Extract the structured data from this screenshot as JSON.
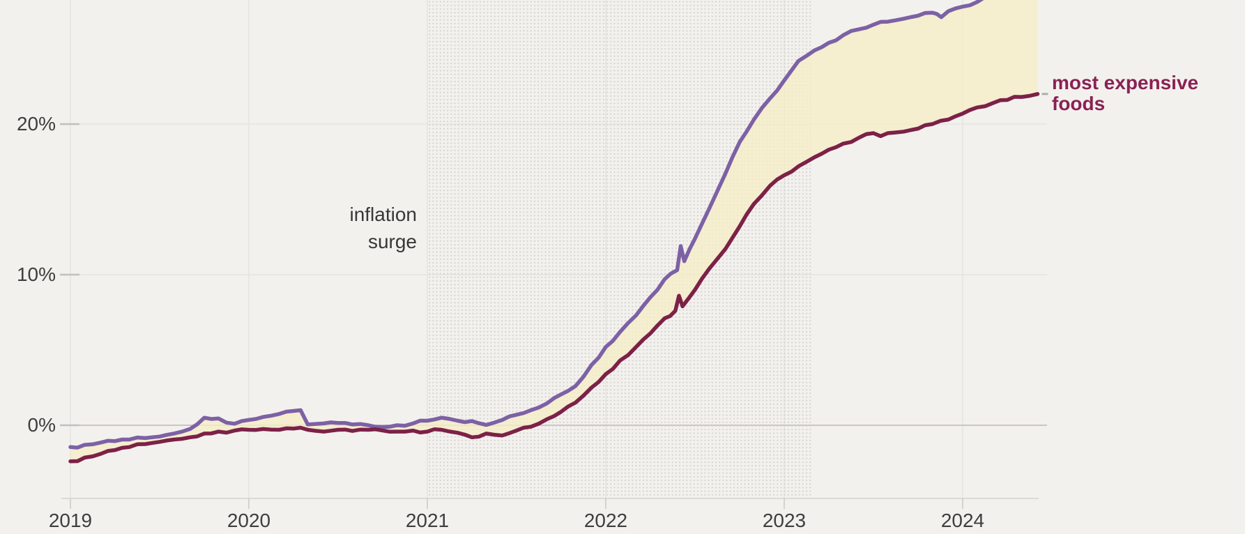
{
  "chart_data": {
    "type": "line",
    "title": "",
    "annotation": {
      "lines": [
        "inflation",
        "surge"
      ]
    },
    "x_axis": {
      "range": [
        2019.0,
        2024.42
      ],
      "ticks": [
        {
          "v": 2019,
          "label": "2019"
        },
        {
          "v": 2020,
          "label": "2020"
        },
        {
          "v": 2021,
          "label": "2021"
        },
        {
          "v": 2022,
          "label": "2022"
        },
        {
          "v": 2023,
          "label": "2023"
        },
        {
          "v": 2024,
          "label": "2024"
        }
      ]
    },
    "y_axis": {
      "unit": "percent",
      "range_shown": [
        -4.9,
        28.2
      ],
      "ticks": [
        {
          "v": 20,
          "label": "20%"
        },
        {
          "v": 10,
          "label": "10%"
        },
        {
          "v": 0,
          "label": "0%"
        }
      ]
    },
    "surge_band": {
      "from": 2021.0,
      "to": 2023.15,
      "label": "inflation surge"
    },
    "fill_between": {
      "color": "#f5eec7",
      "opacity": 0.8
    },
    "series": [
      {
        "name": "",
        "color": "#7d61a5",
        "points": [
          [
            2019.0,
            -1.45
          ],
          [
            2019.08,
            -1.3
          ],
          [
            2019.17,
            -1.15
          ],
          [
            2019.25,
            -1.05
          ],
          [
            2019.33,
            -0.95
          ],
          [
            2019.42,
            -0.85
          ],
          [
            2019.5,
            -0.75
          ],
          [
            2019.58,
            -0.55
          ],
          [
            2019.67,
            -0.25
          ],
          [
            2019.75,
            0.5
          ],
          [
            2019.83,
            0.45
          ],
          [
            2019.92,
            0.1
          ],
          [
            2020.0,
            0.35
          ],
          [
            2020.08,
            0.55
          ],
          [
            2020.17,
            0.75
          ],
          [
            2020.25,
            0.95
          ],
          [
            2020.29,
            1.0
          ],
          [
            2020.33,
            0.05
          ],
          [
            2020.42,
            0.12
          ],
          [
            2020.5,
            0.15
          ],
          [
            2020.58,
            0.05
          ],
          [
            2020.67,
            0.0
          ],
          [
            2020.75,
            -0.12
          ],
          [
            2020.83,
            0.0
          ],
          [
            2020.92,
            0.12
          ],
          [
            2021.0,
            0.3
          ],
          [
            2021.08,
            0.5
          ],
          [
            2021.17,
            0.3
          ],
          [
            2021.25,
            0.28
          ],
          [
            2021.33,
            0.02
          ],
          [
            2021.42,
            0.35
          ],
          [
            2021.5,
            0.7
          ],
          [
            2021.58,
            1.0
          ],
          [
            2021.67,
            1.45
          ],
          [
            2021.75,
            2.05
          ],
          [
            2021.83,
            2.6
          ],
          [
            2021.92,
            4.0
          ],
          [
            2022.0,
            5.2
          ],
          [
            2022.08,
            6.2
          ],
          [
            2022.17,
            7.3
          ],
          [
            2022.25,
            8.5
          ],
          [
            2022.33,
            9.7
          ],
          [
            2022.4,
            10.3
          ],
          [
            2022.42,
            11.9
          ],
          [
            2022.44,
            10.9
          ],
          [
            2022.5,
            12.4
          ],
          [
            2022.58,
            14.4
          ],
          [
            2022.67,
            16.7
          ],
          [
            2022.75,
            18.8
          ],
          [
            2022.83,
            20.3
          ],
          [
            2022.92,
            21.7
          ],
          [
            2023.0,
            22.9
          ],
          [
            2023.08,
            24.2
          ],
          [
            2023.17,
            24.9
          ],
          [
            2023.25,
            25.4
          ],
          [
            2023.33,
            25.9
          ],
          [
            2023.42,
            26.3
          ],
          [
            2023.5,
            26.6
          ],
          [
            2023.58,
            26.8
          ],
          [
            2023.67,
            27.0
          ],
          [
            2023.75,
            27.2
          ],
          [
            2023.83,
            27.4
          ],
          [
            2023.88,
            27.1
          ],
          [
            2023.92,
            27.5
          ],
          [
            2024.0,
            27.8
          ],
          [
            2024.08,
            28.1
          ],
          [
            2024.17,
            28.6
          ],
          [
            2024.25,
            29.1
          ],
          [
            2024.33,
            29.4
          ],
          [
            2024.42,
            29.6
          ]
        ]
      },
      {
        "name": "most expensive foods",
        "label_lines": [
          "most expensive",
          "foods"
        ],
        "color": "#7c2147",
        "label_color": "#8a2153",
        "points": [
          [
            2019.0,
            -2.4
          ],
          [
            2019.08,
            -2.15
          ],
          [
            2019.17,
            -1.9
          ],
          [
            2019.25,
            -1.65
          ],
          [
            2019.33,
            -1.45
          ],
          [
            2019.42,
            -1.25
          ],
          [
            2019.5,
            -1.1
          ],
          [
            2019.58,
            -0.95
          ],
          [
            2019.67,
            -0.8
          ],
          [
            2019.75,
            -0.55
          ],
          [
            2019.83,
            -0.42
          ],
          [
            2019.92,
            -0.35
          ],
          [
            2020.0,
            -0.3
          ],
          [
            2020.08,
            -0.25
          ],
          [
            2020.17,
            -0.3
          ],
          [
            2020.25,
            -0.22
          ],
          [
            2020.33,
            -0.3
          ],
          [
            2020.42,
            -0.42
          ],
          [
            2020.5,
            -0.3
          ],
          [
            2020.58,
            -0.38
          ],
          [
            2020.67,
            -0.3
          ],
          [
            2020.75,
            -0.35
          ],
          [
            2020.83,
            -0.42
          ],
          [
            2020.92,
            -0.35
          ],
          [
            2021.0,
            -0.42
          ],
          [
            2021.08,
            -0.3
          ],
          [
            2021.17,
            -0.5
          ],
          [
            2021.25,
            -0.8
          ],
          [
            2021.33,
            -0.55
          ],
          [
            2021.42,
            -0.68
          ],
          [
            2021.5,
            -0.35
          ],
          [
            2021.58,
            -0.1
          ],
          [
            2021.67,
            0.4
          ],
          [
            2021.75,
            0.9
          ],
          [
            2021.83,
            1.5
          ],
          [
            2021.92,
            2.5
          ],
          [
            2022.0,
            3.4
          ],
          [
            2022.08,
            4.3
          ],
          [
            2022.17,
            5.2
          ],
          [
            2022.25,
            6.1
          ],
          [
            2022.33,
            7.1
          ],
          [
            2022.39,
            7.6
          ],
          [
            2022.41,
            8.6
          ],
          [
            2022.43,
            7.9
          ],
          [
            2022.5,
            9.0
          ],
          [
            2022.58,
            10.4
          ],
          [
            2022.67,
            11.7
          ],
          [
            2022.75,
            13.2
          ],
          [
            2022.83,
            14.7
          ],
          [
            2022.92,
            15.9
          ],
          [
            2023.0,
            16.6
          ],
          [
            2023.08,
            17.2
          ],
          [
            2023.17,
            17.8
          ],
          [
            2023.25,
            18.3
          ],
          [
            2023.33,
            18.7
          ],
          [
            2023.42,
            19.1
          ],
          [
            2023.5,
            19.4
          ],
          [
            2023.54,
            19.2
          ],
          [
            2023.58,
            19.4
          ],
          [
            2023.67,
            19.5
          ],
          [
            2023.75,
            19.7
          ],
          [
            2023.83,
            20.0
          ],
          [
            2023.92,
            20.3
          ],
          [
            2024.0,
            20.7
          ],
          [
            2024.08,
            21.1
          ],
          [
            2024.17,
            21.4
          ],
          [
            2024.25,
            21.6
          ],
          [
            2024.33,
            21.8
          ],
          [
            2024.42,
            22.0
          ]
        ]
      }
    ],
    "colors": {
      "background": "#f3f1ee",
      "grid_light": "#e6e4e1",
      "grid_stub": "#c2c0bd",
      "zero_line": "#c9c6c3",
      "axis_line": "#dcdad7",
      "axis_tick": "#cbc9c6",
      "dots": "#d3d1cd",
      "end_tick": "#b0aeab",
      "text": "#3f3e3c"
    }
  }
}
